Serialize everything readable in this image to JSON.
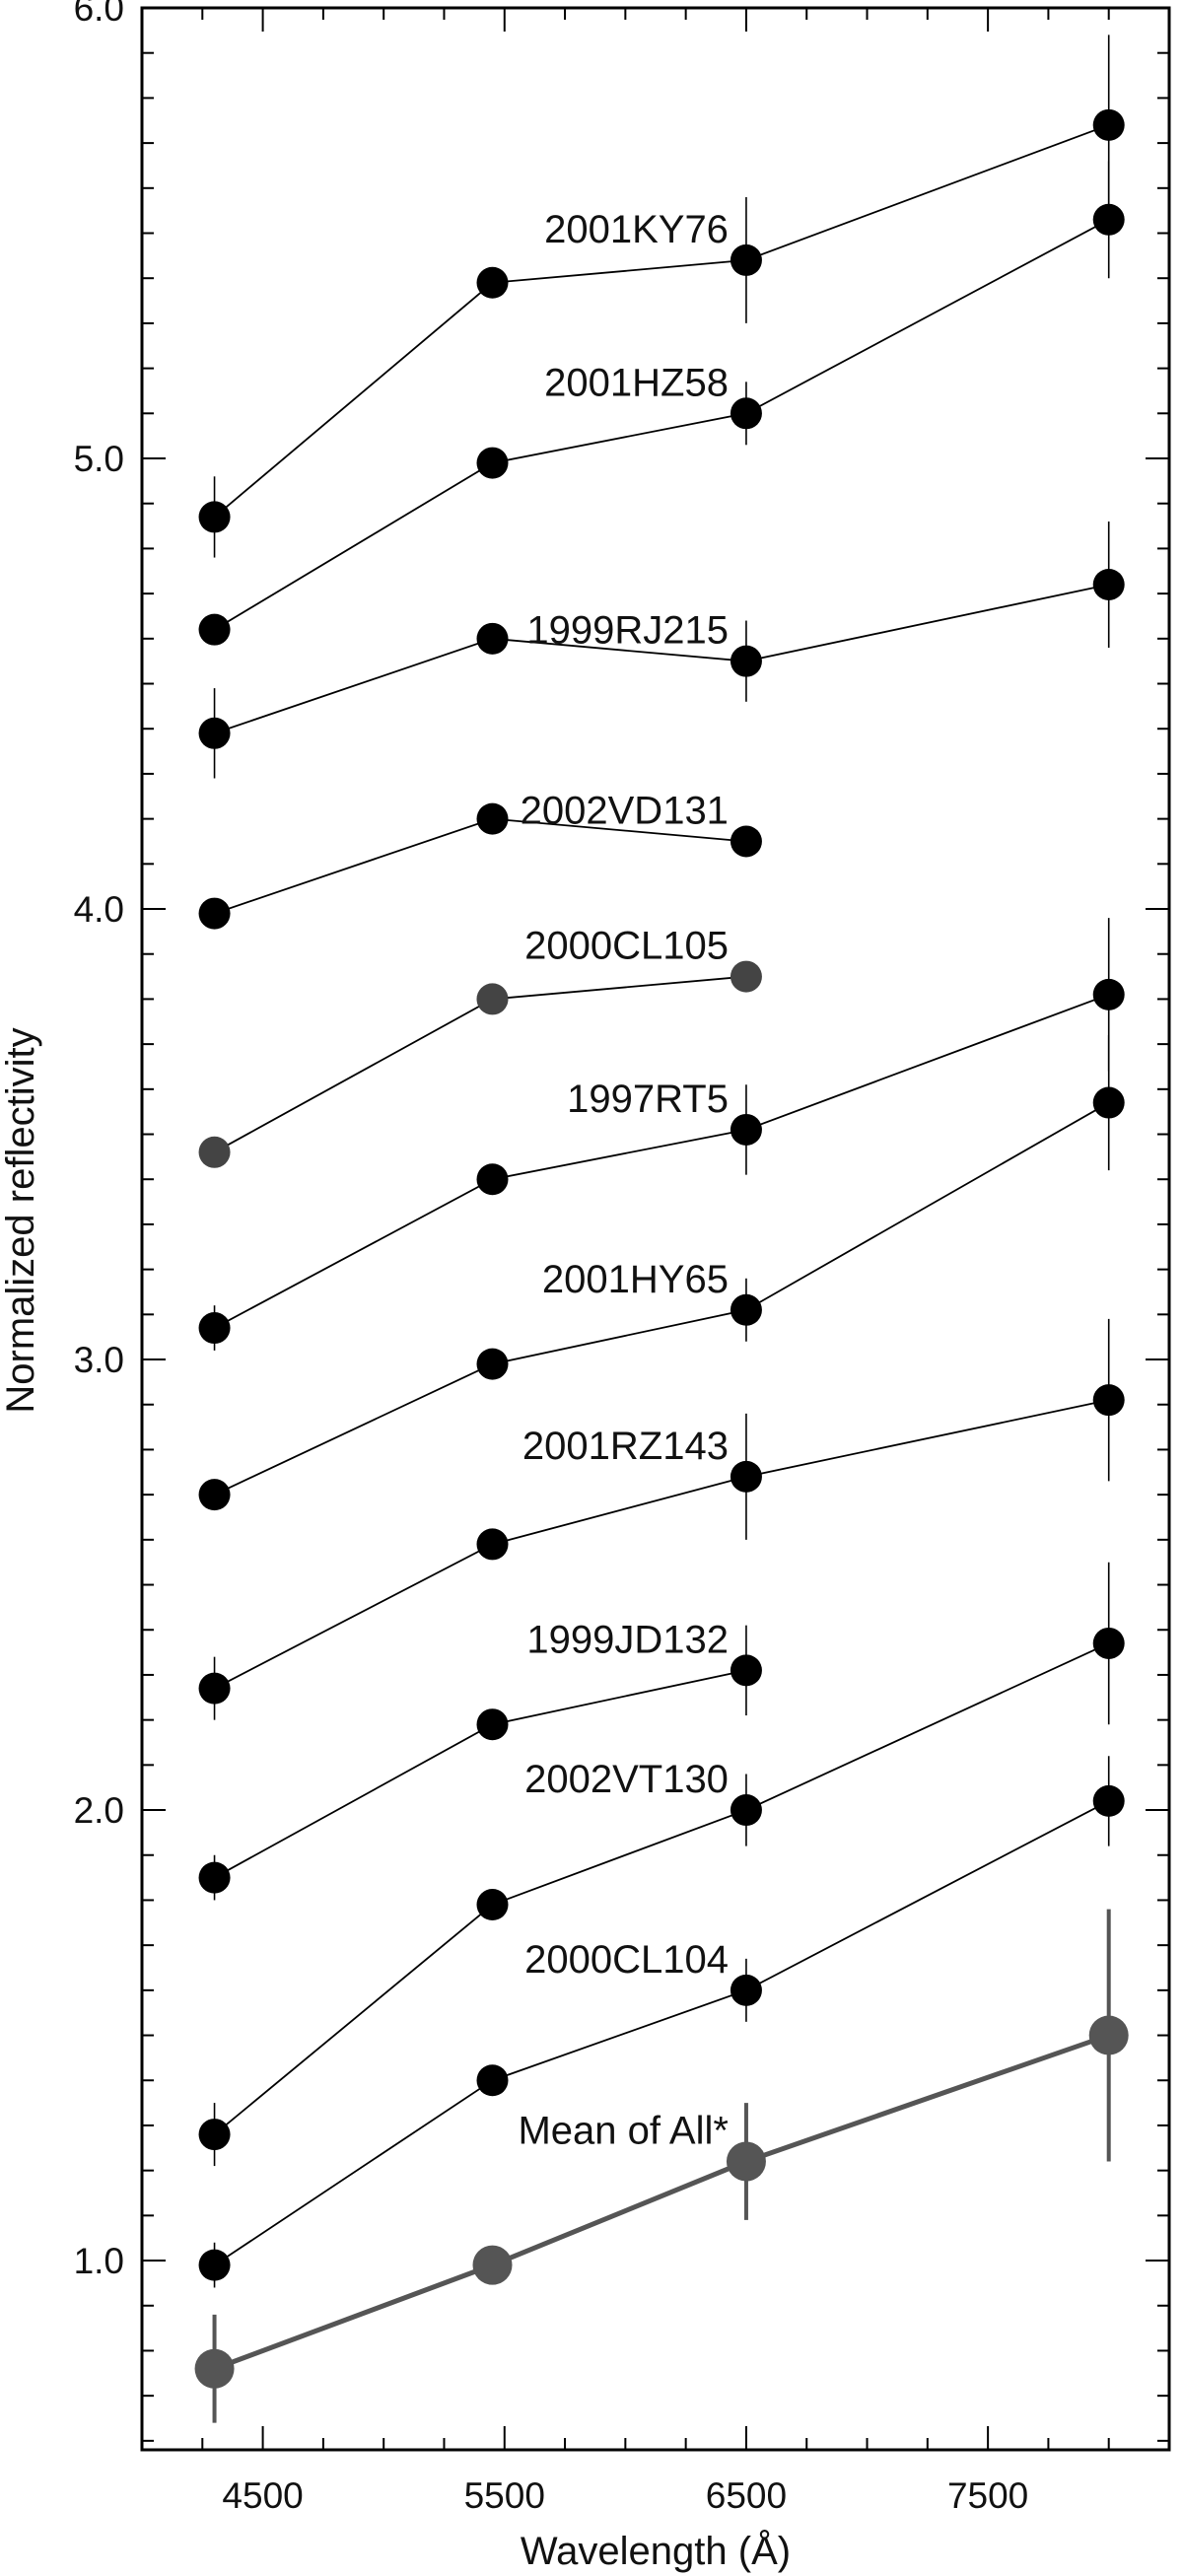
{
  "chart_data": {
    "type": "line",
    "xlabel": "Wavelength (Å)",
    "ylabel": "Normalized reflectivity",
    "xlim": [
      4000,
      8250
    ],
    "ylim": [
      0.58,
      6.0
    ],
    "x_ticks": [
      4500,
      5500,
      6500,
      7500
    ],
    "y_ticks": [
      1.0,
      2.0,
      3.0,
      4.0,
      5.0,
      6.0
    ],
    "x_tick_labels": [
      "4500",
      "5500",
      "6500",
      "7500"
    ],
    "y_tick_labels": [
      "1.0",
      "2.0",
      "3.0",
      "4.0",
      "5.0",
      "6.0"
    ],
    "grid": false,
    "legend": "none",
    "series": [
      {
        "name": "2001KY76",
        "color": "#000000",
        "x": [
          4300,
          5450,
          6500,
          8000
        ],
        "y": [
          4.87,
          5.39,
          5.44,
          5.74
        ],
        "err": [
          0.09,
          0,
          0.14,
          0.2
        ]
      },
      {
        "name": "2001HZ58",
        "color": "#000000",
        "x": [
          4300,
          5450,
          6500,
          8000
        ],
        "y": [
          4.62,
          4.99,
          5.1,
          5.53
        ],
        "err": [
          0,
          0,
          0.07,
          0.13
        ]
      },
      {
        "name": "1999RJ215",
        "color": "#000000",
        "x": [
          4300,
          5450,
          6500,
          8000
        ],
        "y": [
          4.39,
          4.6,
          4.55,
          4.72
        ],
        "err": [
          0.1,
          0,
          0.09,
          0.14
        ]
      },
      {
        "name": "2002VD131",
        "color": "#000000",
        "x": [
          4300,
          5450,
          6500
        ],
        "y": [
          3.99,
          4.2,
          4.15
        ],
        "err": [
          0,
          0,
          0
        ]
      },
      {
        "name": "2000CL105",
        "color": "#444444",
        "x": [
          4300,
          5450,
          6500
        ],
        "y": [
          3.46,
          3.8,
          3.85
        ],
        "err": [
          0,
          0,
          0
        ]
      },
      {
        "name": "1997RT5",
        "color": "#000000",
        "x": [
          4300,
          5450,
          6500,
          8000
        ],
        "y": [
          3.07,
          3.4,
          3.51,
          3.81
        ],
        "err": [
          0.05,
          0,
          0.1,
          0.17
        ]
      },
      {
        "name": "2001HY65",
        "color": "#000000",
        "x": [
          4300,
          5450,
          6500,
          8000
        ],
        "y": [
          2.7,
          2.99,
          3.11,
          3.57
        ],
        "err": [
          0,
          0,
          0.07,
          0.15
        ]
      },
      {
        "name": "2001RZ143",
        "color": "#000000",
        "x": [
          4300,
          5450,
          6500,
          8000
        ],
        "y": [
          2.27,
          2.59,
          2.74,
          2.91
        ],
        "err": [
          0.07,
          0,
          0.14,
          0.18
        ]
      },
      {
        "name": "1999JD132",
        "color": "#000000",
        "x": [
          4300,
          5450,
          6500
        ],
        "y": [
          1.85,
          2.19,
          2.31
        ],
        "err": [
          0.05,
          0,
          0.1
        ]
      },
      {
        "name": "2002VT130",
        "color": "#000000",
        "x": [
          4300,
          5450,
          6500,
          8000
        ],
        "y": [
          1.28,
          1.79,
          2.0,
          2.37
        ],
        "err": [
          0.07,
          0,
          0.08,
          0.18
        ]
      },
      {
        "name": "2000CL104",
        "color": "#000000",
        "x": [
          4300,
          5450,
          6500,
          8000
        ],
        "y": [
          0.99,
          1.4,
          1.6,
          2.02
        ],
        "err": [
          0.05,
          0,
          0.07,
          0.1
        ]
      },
      {
        "name": "Mean of All*",
        "color": "#555555",
        "x": [
          4300,
          5450,
          6500,
          8000
        ],
        "y": [
          0.76,
          0.99,
          1.22,
          1.5
        ],
        "err": [
          0.12,
          0,
          0.13,
          0.28
        ]
      }
    ]
  }
}
